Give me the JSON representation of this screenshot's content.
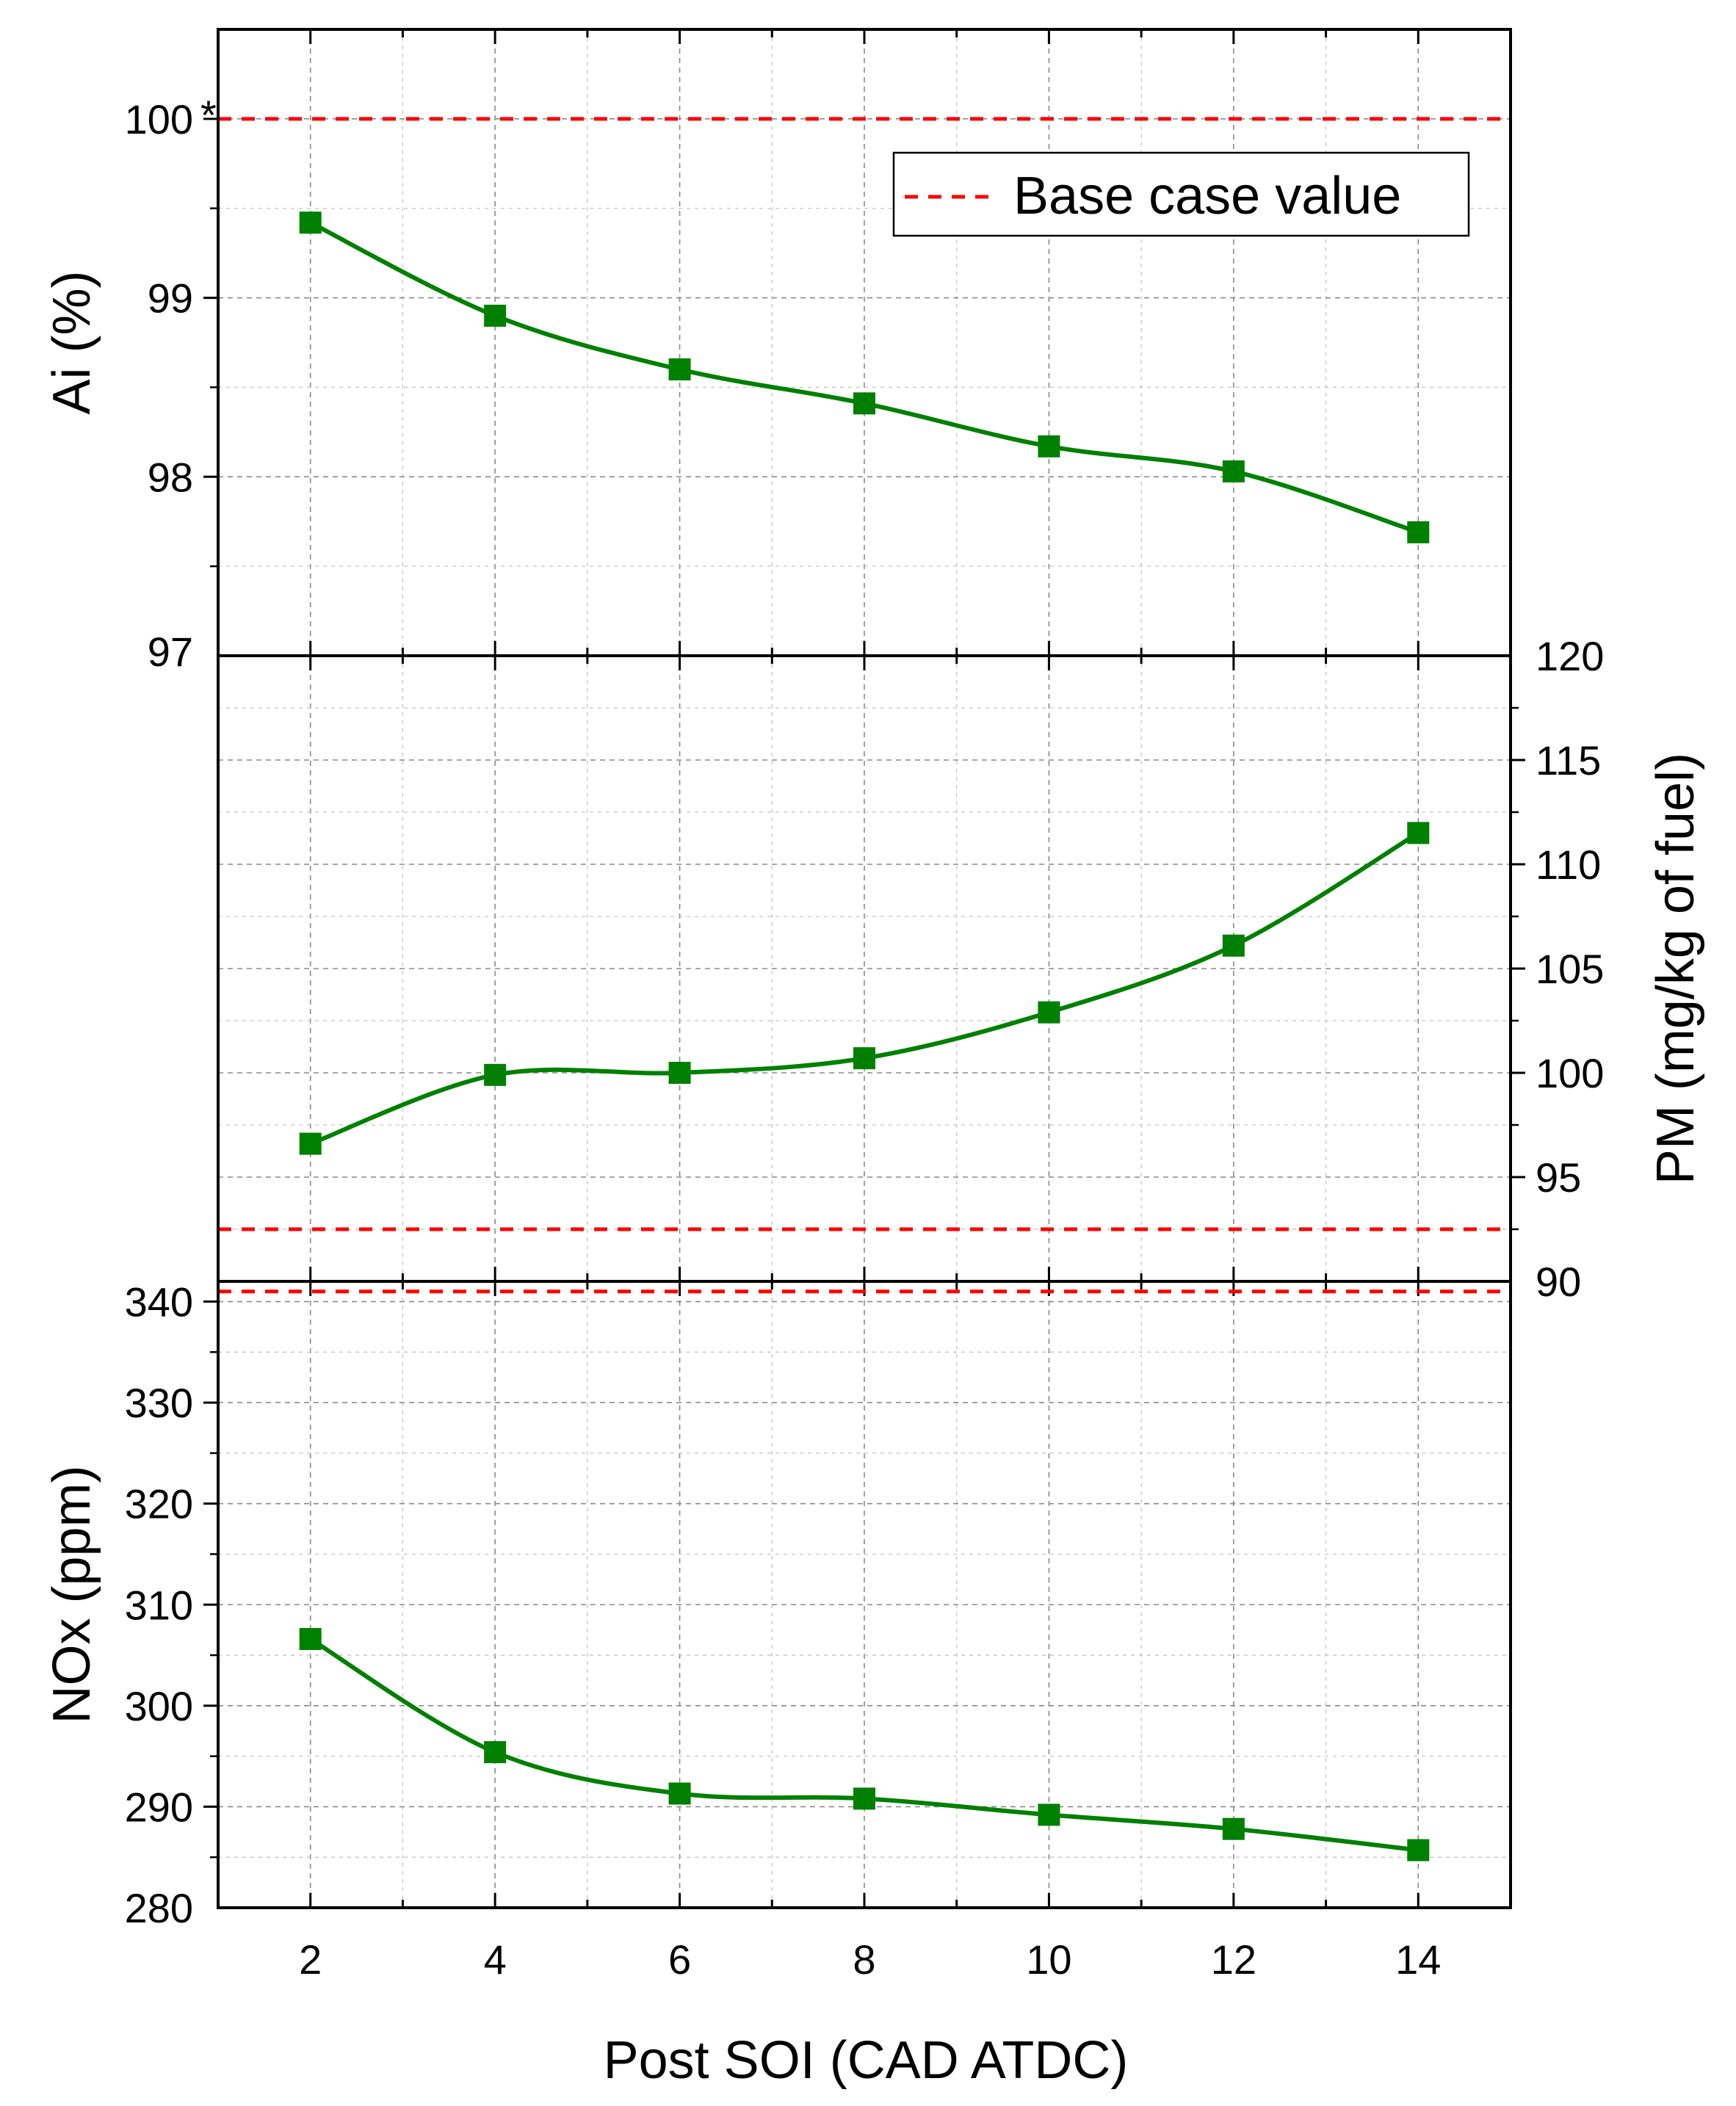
{
  "figure": {
    "xlabel": "Post SOI (CAD ATDC)",
    "xlim": [
      1,
      15
    ],
    "xticks": [
      2,
      4,
      6,
      8,
      10,
      12,
      14
    ],
    "line_color": "#008000",
    "base_color": "#ff0000",
    "grid": true
  },
  "legend": {
    "label": "Base case value",
    "placement": "top-right of top panel"
  },
  "chart_data": [
    {
      "type": "line",
      "panel": "top",
      "ylabel": "Ai (%)",
      "ylim": [
        97,
        100.5
      ],
      "yticks": [
        97,
        98,
        99,
        100
      ],
      "ytick_labels": [
        "97",
        "98",
        "99",
        "100"
      ],
      "tick_marker": "*",
      "axis_side": "left",
      "x": [
        2,
        4,
        6,
        8,
        10,
        12,
        14
      ],
      "series": [
        {
          "name": "Ai",
          "values": [
            99.42,
            98.9,
            98.6,
            98.41,
            98.17,
            98.03,
            97.69
          ]
        }
      ],
      "base_case_value": 100
    },
    {
      "type": "line",
      "panel": "middle",
      "ylabel": "PM (mg/kg of fuel)",
      "ylim": [
        90,
        120
      ],
      "yticks": [
        90,
        95,
        100,
        105,
        110,
        115,
        120
      ],
      "ytick_labels": [
        "90",
        "95",
        "100",
        "105",
        "110",
        "115",
        "120"
      ],
      "axis_side": "right",
      "x": [
        2,
        4,
        6,
        8,
        10,
        12,
        14
      ],
      "series": [
        {
          "name": "PM",
          "values": [
            96.6,
            99.9,
            100.0,
            100.7,
            102.9,
            106.1,
            111.5
          ]
        }
      ],
      "base_case_value": 92.5
    },
    {
      "type": "line",
      "panel": "bottom",
      "ylabel": "NOx (ppm)",
      "ylim": [
        280,
        342
      ],
      "yticks": [
        280,
        290,
        300,
        310,
        320,
        330,
        340
      ],
      "ytick_labels": [
        "280",
        "290",
        "300",
        "310",
        "320",
        "330",
        "340"
      ],
      "axis_side": "left",
      "x": [
        2,
        4,
        6,
        8,
        10,
        12,
        14
      ],
      "series": [
        {
          "name": "NOx",
          "values": [
            306.6,
            295.4,
            291.3,
            290.8,
            289.2,
            287.8,
            285.7
          ]
        }
      ],
      "base_case_value": 341
    }
  ]
}
